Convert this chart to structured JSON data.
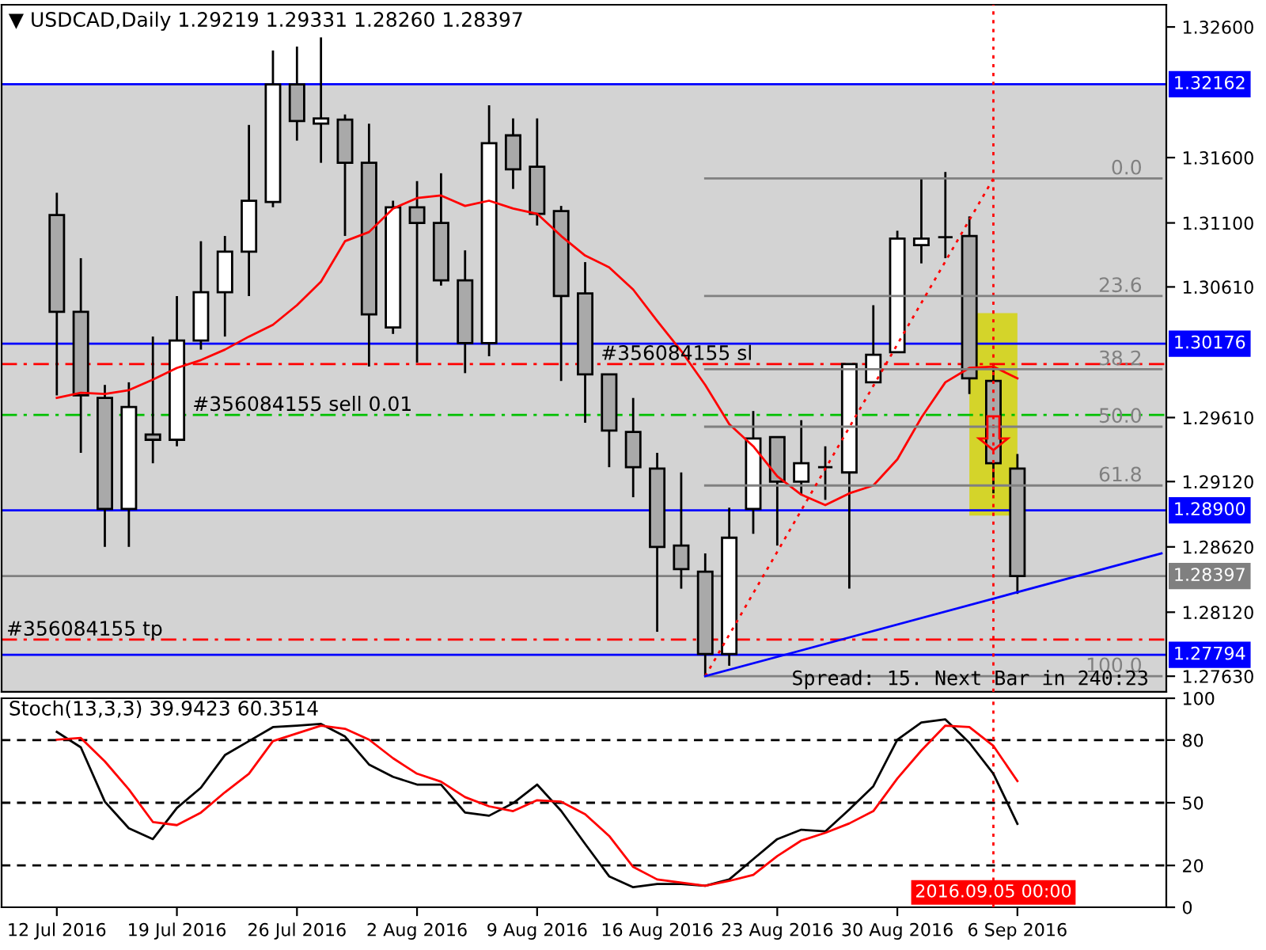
{
  "chart_data": [
    {
      "type": "candlestick",
      "title": "▼ USDCAD,Daily 1.29219 1.29331 1.28260 1.28397",
      "categories": [
        null,
        null,
        null,
        null,
        null,
        null,
        null,
        null,
        null,
        null,
        null,
        null,
        null,
        null,
        null,
        null,
        null,
        null,
        null,
        null,
        null,
        null,
        null,
        null,
        null,
        null,
        null,
        null,
        null,
        null,
        null,
        null,
        null,
        null,
        null,
        null,
        null,
        null,
        null,
        null,
        null,
        null,
        null,
        null,
        null,
        null,
        null
      ],
      "ohlc": [
        [
          1.3116,
          1.3133,
          1.2978,
          1.3042
        ],
        [
          1.3042,
          1.3083,
          1.2934,
          1.2978
        ],
        [
          1.2976,
          1.2986,
          1.2862,
          1.2891
        ],
        [
          1.2891,
          1.2988,
          1.2862,
          1.2969
        ],
        [
          1.2948,
          1.3023,
          1.2926,
          1.2944
        ],
        [
          1.2944,
          1.3054,
          1.2939,
          1.302
        ],
        [
          1.302,
          1.3096,
          1.3013,
          1.3057
        ],
        [
          1.3057,
          1.31,
          1.3023,
          1.3088
        ],
        [
          1.3088,
          1.3185,
          1.3054,
          1.3127
        ],
        [
          1.3126,
          1.3242,
          1.3122,
          1.3216
        ],
        [
          1.3216,
          1.3245,
          1.3173,
          1.3188
        ],
        [
          1.3186,
          1.3252,
          1.3156,
          1.319
        ],
        [
          1.3189,
          1.3193,
          1.31,
          1.3156
        ],
        [
          1.3156,
          1.3186,
          1.3,
          1.304
        ],
        [
          1.303,
          1.3127,
          1.3025,
          1.3122
        ],
        [
          1.3122,
          1.3142,
          1.3003,
          1.311
        ],
        [
          1.311,
          1.3148,
          1.3062,
          1.3066
        ],
        [
          1.3066,
          1.3089,
          1.2995,
          1.3018
        ],
        [
          1.3018,
          1.32,
          1.3008,
          1.3171
        ],
        [
          1.3177,
          1.319,
          1.3136,
          1.3151
        ],
        [
          1.3153,
          1.319,
          1.3108,
          1.3117
        ],
        [
          1.3119,
          1.3123,
          1.2989,
          1.3054
        ],
        [
          1.3056,
          1.308,
          1.2957,
          1.2994
        ],
        [
          1.2994,
          1.2994,
          1.2923,
          1.2951
        ],
        [
          1.295,
          1.2976,
          1.29,
          1.2923
        ],
        [
          1.2922,
          1.2934,
          1.2797,
          1.2862
        ],
        [
          1.2863,
          1.2919,
          1.283,
          1.2845
        ],
        [
          1.2843,
          1.2857,
          1.2763,
          1.278
        ],
        [
          1.278,
          1.2892,
          1.2771,
          1.2869
        ],
        [
          1.2891,
          1.2966,
          1.2872,
          1.2945
        ],
        [
          1.2946,
          1.2946,
          1.2863,
          1.2912
        ],
        [
          1.2912,
          1.2959,
          1.2902,
          1.2926
        ],
        [
          1.2923,
          1.2939,
          1.2898,
          1.2923
        ],
        [
          1.2919,
          1.3002,
          1.283,
          1.3002
        ],
        [
          1.2988,
          1.3047,
          1.2988,
          1.3009
        ],
        [
          1.3011,
          1.3104,
          1.3011,
          1.3098
        ],
        [
          1.3093,
          1.3144,
          1.3079,
          1.3098
        ],
        [
          1.3099,
          1.3149,
          1.3083,
          1.3099
        ],
        [
          1.31,
          1.3115,
          1.2979,
          1.2991
        ],
        [
          1.2989,
          1.3002,
          1.2903,
          1.2926
        ],
        [
          1.29219,
          1.29331,
          1.2826,
          1.28397
        ],
        null,
        null,
        null,
        null,
        null,
        null
      ],
      "colors": [
        "#a9a9a9",
        "#a9a9a9",
        "#a9a9a9",
        "#ffffff",
        "#a9a9a9",
        "#ffffff",
        "#ffffff",
        "#ffffff",
        "#ffffff",
        "#ffffff",
        "#a9a9a9",
        "#ffffff",
        "#a9a9a9",
        "#a9a9a9",
        "#ffffff",
        "#a9a9a9",
        "#a9a9a9",
        "#a9a9a9",
        "#ffffff",
        "#a9a9a9",
        "#a9a9a9",
        "#a9a9a9",
        "#a9a9a9",
        "#a9a9a9",
        "#a9a9a9",
        "#a9a9a9",
        "#a9a9a9",
        "#a9a9a9",
        "#ffffff",
        "#ffffff",
        "#a9a9a9",
        "#ffffff",
        "#000000",
        "#ffffff",
        "#ffffff",
        "#ffffff",
        "#ffffff",
        "#000000",
        "#a9a9a9",
        "#a9a9a9",
        "#a9a9a9",
        null,
        null,
        null,
        null,
        null,
        null
      ],
      "series": [
        {
          "type": "line",
          "color": "#ff0000",
          "values": [
            1.2976,
            1.298,
            1.2979,
            1.2982,
            1.299,
            1.2999,
            1.3005,
            1.3013,
            1.3023,
            1.3032,
            1.3047,
            1.3065,
            1.3096,
            1.3103,
            1.3121,
            1.3129,
            1.3131,
            1.3123,
            1.3127,
            1.3121,
            1.3117,
            1.31,
            1.3085,
            1.3076,
            1.3059,
            1.3035,
            1.3012,
            1.2986,
            1.2956,
            1.2939,
            1.2916,
            1.2902,
            1.2894,
            1.2903,
            1.2909,
            1.2929,
            1.2961,
            1.2988,
            1.2999,
            1.3,
            1.2991,
            null,
            null,
            null,
            null,
            null,
            null
          ]
        },
        {
          "type": "line",
          "name": "0.0",
          "color": "#808080",
          "values": [
            null,
            null,
            null,
            null,
            null,
            null,
            null,
            null,
            null,
            null,
            null,
            null,
            null,
            null,
            null,
            null,
            null,
            null,
            null,
            null,
            null,
            null,
            null,
            null,
            null,
            null,
            null,
            1.3144,
            1.3144,
            1.3144,
            1.3144,
            1.3144,
            1.3144,
            1.3144,
            1.3144,
            1.3144,
            1.3144,
            1.3144,
            1.3144,
            1.3144,
            1.3144,
            1.3144,
            1.3144,
            1.3144,
            1.3144,
            1.3144,
            1.3144
          ]
        },
        {
          "type": "line",
          "name": "23.6",
          "color": "#808080",
          "values": [
            null,
            null,
            null,
            null,
            null,
            null,
            null,
            null,
            null,
            null,
            null,
            null,
            null,
            null,
            null,
            null,
            null,
            null,
            null,
            null,
            null,
            null,
            null,
            null,
            null,
            null,
            null,
            1.3054,
            1.3054,
            1.3054,
            1.3054,
            1.3054,
            1.3054,
            1.3054,
            1.3054,
            1.3054,
            1.3054,
            1.3054,
            1.3054,
            1.3054,
            1.3054,
            1.3054,
            1.3054,
            1.3054,
            1.3054,
            1.3054,
            1.3054
          ]
        },
        {
          "type": "line",
          "name": "38.2",
          "color": "#808080",
          "values": [
            null,
            null,
            null,
            null,
            null,
            null,
            null,
            null,
            null,
            null,
            null,
            null,
            null,
            null,
            null,
            null,
            null,
            null,
            null,
            null,
            null,
            null,
            null,
            null,
            null,
            null,
            null,
            1.2998,
            1.2998,
            1.2998,
            1.2998,
            1.2998,
            1.2998,
            1.2998,
            1.2998,
            1.2998,
            1.2998,
            1.2998,
            1.2998,
            1.2998,
            1.2998,
            1.2998,
            1.2998,
            1.2998,
            1.2998,
            1.2998,
            1.2998
          ]
        },
        {
          "type": "line",
          "name": "50.0",
          "color": "#808080",
          "values": [
            null,
            null,
            null,
            null,
            null,
            null,
            null,
            null,
            null,
            null,
            null,
            null,
            null,
            null,
            null,
            null,
            null,
            null,
            null,
            null,
            null,
            null,
            null,
            null,
            null,
            null,
            null,
            1.2954,
            1.2954,
            1.2954,
            1.2954,
            1.2954,
            1.2954,
            1.2954,
            1.2954,
            1.2954,
            1.2954,
            1.2954,
            1.2954,
            1.2954,
            1.2954,
            1.2954,
            1.2954,
            1.2954,
            1.2954,
            1.2954,
            1.2954
          ]
        },
        {
          "type": "line",
          "name": "61.8",
          "color": "#808080",
          "values": [
            null,
            null,
            null,
            null,
            null,
            null,
            null,
            null,
            null,
            null,
            null,
            null,
            null,
            null,
            null,
            null,
            null,
            null,
            null,
            null,
            null,
            null,
            null,
            null,
            null,
            null,
            null,
            1.2909,
            1.2909,
            1.2909,
            1.2909,
            1.2909,
            1.2909,
            1.2909,
            1.2909,
            1.2909,
            1.2909,
            1.2909,
            1.2909,
            1.2909,
            1.2909,
            1.2909,
            1.2909,
            1.2909,
            1.2909,
            1.2909,
            1.2909
          ]
        },
        {
          "type": "line",
          "name": "100.0",
          "color": "#808080",
          "values": [
            null,
            null,
            null,
            null,
            null,
            null,
            null,
            null,
            null,
            null,
            null,
            null,
            null,
            null,
            null,
            null,
            null,
            null,
            null,
            null,
            null,
            null,
            null,
            null,
            null,
            null,
            null,
            1.2763,
            1.2763,
            1.2763,
            1.2763,
            1.2763,
            1.2763,
            1.2763,
            1.2763,
            1.2763,
            1.2763,
            1.2763,
            1.2763,
            1.2763,
            1.2763,
            1.2763,
            1.2763,
            1.2763,
            1.2763,
            1.2763,
            1.2763
          ]
        },
        {
          "type": "line",
          "color": "#ff0000",
          "line_style": "dotted",
          "values": [
            null,
            null,
            null,
            null,
            null,
            null,
            null,
            null,
            null,
            null,
            null,
            null,
            null,
            null,
            null,
            null,
            null,
            null,
            null,
            null,
            null,
            null,
            null,
            null,
            null,
            null,
            null,
            1.2763,
            null,
            null,
            null,
            null,
            null,
            null,
            null,
            null,
            null,
            null,
            null,
            1.3144,
            null,
            null,
            null,
            null,
            null,
            null,
            null
          ]
        },
        {
          "type": "line",
          "color": "#0000ff",
          "values": [
            null,
            null,
            null,
            null,
            null,
            null,
            null,
            null,
            null,
            null,
            null,
            null,
            null,
            null,
            null,
            null,
            null,
            null,
            null,
            null,
            null,
            null,
            null,
            null,
            null,
            null,
            null,
            1.2763,
            null,
            null,
            null,
            null,
            null,
            null,
            null,
            null,
            null,
            null,
            null,
            null,
            null,
            null,
            null,
            null,
            null,
            null,
            1.2857
          ]
        }
      ],
      "bands": [
        {
          "axis": "y",
          "from": 1.2751,
          "to": 1.32162,
          "color": "#d3d3d3"
        }
      ],
      "ref_lines": [
        {
          "axis": "y",
          "value": 1.32162,
          "label": "1.32162",
          "color": "#0000ff",
          "line_style": "solid"
        },
        {
          "axis": "y",
          "value": 1.30176,
          "label": "1.30176",
          "color": "#0000ff",
          "line_style": "solid"
        },
        {
          "axis": "y",
          "value": 1.289,
          "label": "1.28900",
          "color": "#0000ff",
          "line_style": "solid"
        },
        {
          "axis": "y",
          "value": 1.27794,
          "label": "1.27794",
          "color": "#0000ff",
          "line_style": "solid"
        },
        {
          "axis": "y",
          "value": 1.28397,
          "label": "1.28397",
          "color": "#808080",
          "line_style": "solid"
        },
        {
          "axis": "y",
          "value": 1.3002,
          "label": "#356084155 sl",
          "color": "#ff0000",
          "line_style": "dashdot"
        },
        {
          "axis": "y",
          "value": 1.2963,
          "label": "#356084155 sell 0.01",
          "color": "#00c000",
          "line_style": "dashdot"
        },
        {
          "axis": "y",
          "value": 1.2791,
          "label": "#356084155 tp",
          "color": "#ff0000",
          "line_style": "dashdot"
        }
      ],
      "annotations": [
        "Spread: 15. Next Bar in 240:23"
      ],
      "ylim": [
        1.2751,
        1.3277
      ],
      "yticks": [
        {
          "value": 1.326,
          "label": "1.32600"
        },
        {
          "value": 1.316,
          "label": "1.31600"
        },
        {
          "value": 1.311,
          "label": "1.31100"
        },
        {
          "value": 1.3061,
          "label": "1.30610"
        },
        {
          "value": 1.2961,
          "label": "1.29610"
        },
        {
          "value": 1.2912,
          "label": "1.29120"
        },
        {
          "value": 1.2862,
          "label": "1.28620"
        },
        {
          "value": 1.2812,
          "label": "1.28120"
        },
        {
          "value": 1.2763,
          "label": "1.27630"
        }
      ],
      "tick_labels": "y"
    },
    {
      "type": "line",
      "title": "Stoch(13,3,3) 39.9423 60.3514",
      "categories": [
        "12 Jul 2016",
        null,
        null,
        null,
        null,
        "19 Jul 2016",
        null,
        null,
        null,
        null,
        "26 Jul 2016",
        null,
        null,
        null,
        null,
        "2 Aug 2016",
        null,
        null,
        null,
        null,
        "9 Aug 2016",
        null,
        null,
        null,
        null,
        "16 Aug 2016",
        null,
        null,
        null,
        null,
        "23 Aug 2016",
        null,
        null,
        null,
        null,
        "30 Aug 2016",
        null,
        null,
        null,
        null,
        "6 Sep 2016",
        null,
        null,
        null,
        null,
        null,
        null
      ],
      "series": [
        {
          "color": "#000000",
          "values": [
            83.9,
            76.5,
            50.5,
            37.8,
            32.6,
            47.5,
            57.2,
            72.8,
            79.5,
            86.2,
            86.9,
            87.7,
            81.7,
            68.3,
            62.4,
            58.7,
            58.7,
            45.3,
            43.8,
            49.8,
            58.7,
            46.1,
            30.3,
            14.8,
            9.6,
            11.1,
            11.1,
            10.3,
            13.3,
            23.0,
            32.6,
            37.1,
            36.3,
            46.8,
            57.9,
            80.2,
            88.4,
            89.9,
            78.7,
            63.9,
            39.9423,
            null,
            null,
            null,
            null,
            null,
            null
          ]
        },
        {
          "color": "#ff0000",
          "values": [
            80.2,
            81.0,
            69.8,
            56.4,
            40.8,
            39.3,
            45.3,
            55.0,
            63.9,
            79.5,
            83.2,
            86.9,
            85.4,
            80.2,
            71.3,
            63.9,
            60.1,
            52.7,
            48.3,
            46.0,
            51.2,
            50.5,
            44.5,
            34.1,
            19.3,
            13.3,
            11.8,
            10.3,
            12.6,
            15.5,
            24.5,
            31.9,
            35.6,
            40.1,
            46.0,
            61.6,
            75.0,
            86.9,
            86.2,
            77.2,
            60.3514,
            null,
            null,
            null,
            null,
            null,
            null
          ]
        }
      ],
      "ref_lines": [
        {
          "axis": "y",
          "value": 80,
          "color": "#000000",
          "line_style": "dashed"
        },
        {
          "axis": "y",
          "value": 50,
          "color": "#000000",
          "line_style": "dashed"
        },
        {
          "axis": "y",
          "value": 20,
          "color": "#000000",
          "line_style": "dashed"
        }
      ],
      "annotations": [
        "2016.09.05 00:00"
      ],
      "ylim": [
        0,
        100
      ],
      "yticks": [
        100,
        80,
        50,
        20,
        0
      ]
    }
  ]
}
